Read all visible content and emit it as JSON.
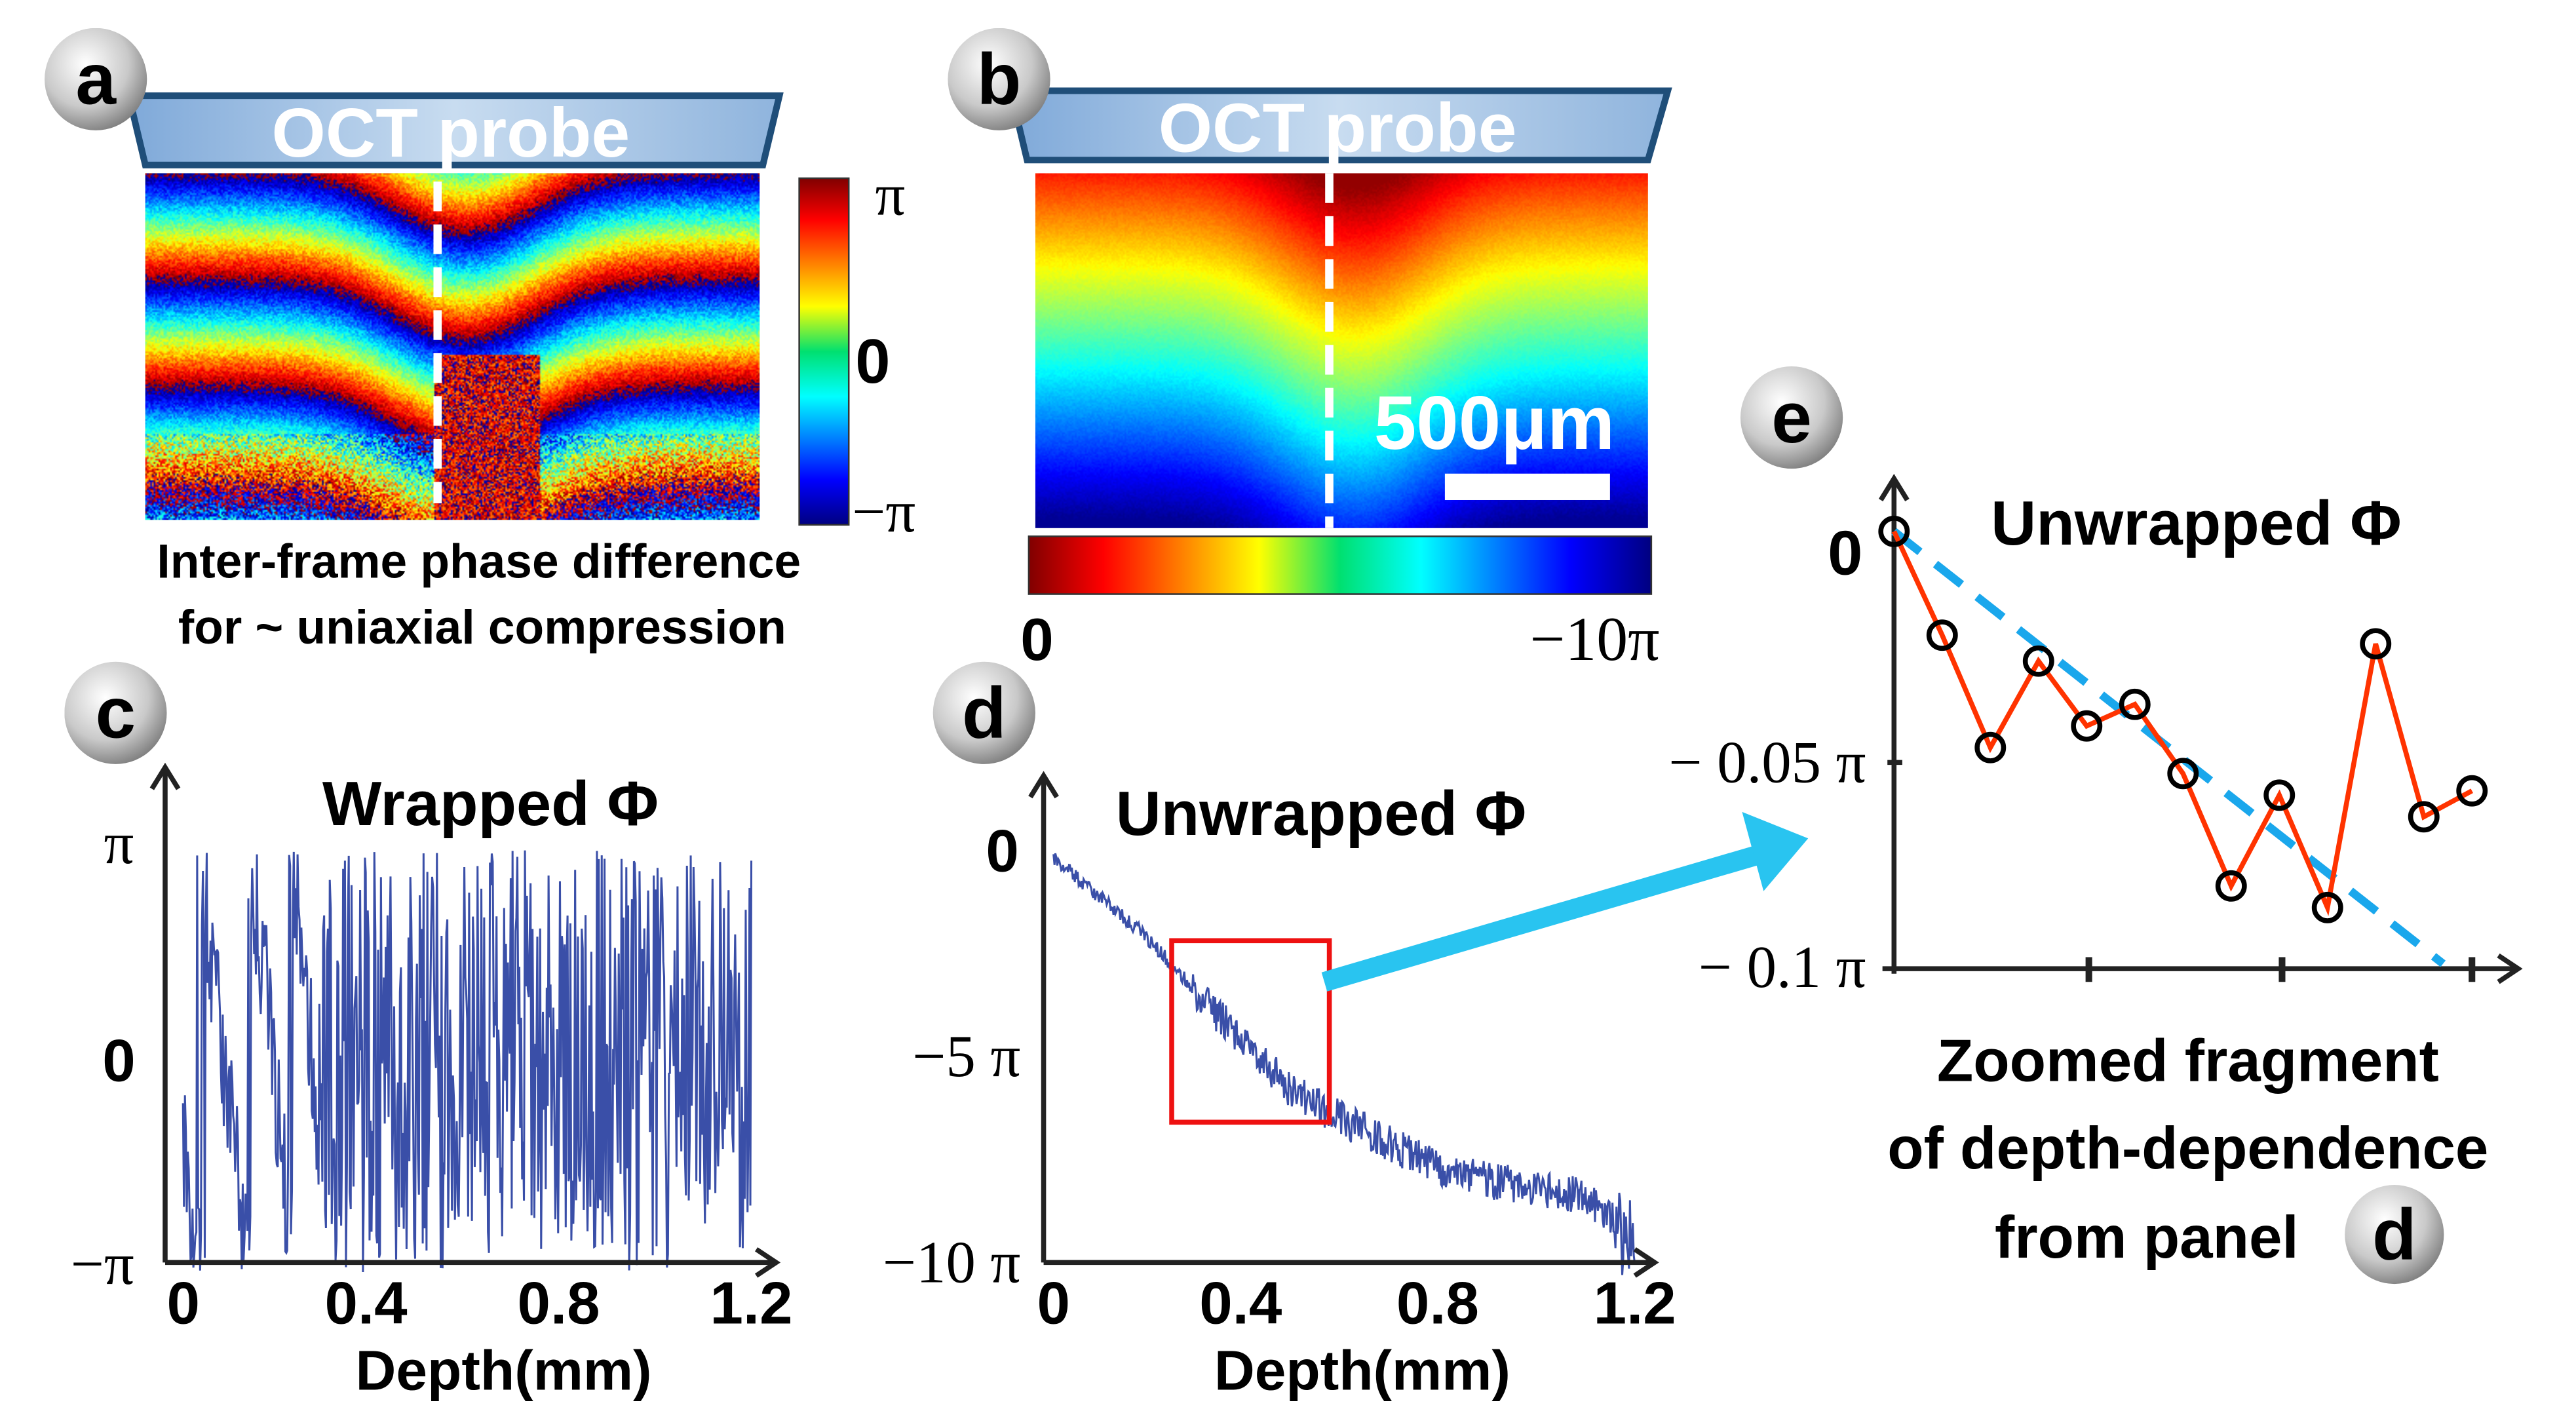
{
  "panels": {
    "a": {
      "letter": "a",
      "probe_label": "OCT probe",
      "colorbar_ticks": [
        "π",
        "0",
        "−π"
      ],
      "caption_lines": [
        "Inter-frame phase difference",
        "for ~ uniaxial compression"
      ]
    },
    "b": {
      "letter": "b",
      "probe_label": "OCT probe",
      "scale_label": "500μm",
      "colorbar_ticks": [
        "0",
        "−10π"
      ]
    },
    "c": {
      "letter": "c"
    },
    "d": {
      "letter": "d"
    },
    "e": {
      "letter": "e",
      "caption_lines": [
        "Zoomed fragment",
        "of depth-dependence",
        "from panel"
      ],
      "caption_ref": "d"
    }
  },
  "colors": {
    "trace": "#3a4fa8",
    "zoom_line": "#ff3300",
    "fit_line": "#1aa7ec",
    "highlight_box": "#ee1111",
    "arrow": "#29c4f0"
  },
  "chart_data": [
    {
      "id": "c",
      "type": "line",
      "title": "Wrapped Φ",
      "xlabel": "Depth(mm)",
      "ylabel": "",
      "xlim": [
        0,
        1.2
      ],
      "ylim_pi": [
        -1,
        1
      ],
      "xticks": [
        "0",
        "0.4",
        "0.8",
        "1.2"
      ],
      "yticks": [
        "π",
        "0",
        "−π"
      ],
      "description_values": "wrapped version of panel d phase (values wrapped into [−π, π])"
    },
    {
      "id": "d",
      "type": "line",
      "title": "Unwrapped Φ",
      "xlabel": "Depth(mm)",
      "xlim": [
        0,
        1.2
      ],
      "ylim_pi": [
        -10,
        0
      ],
      "xticks": [
        "0",
        "0.4",
        "0.8",
        "1.2"
      ],
      "yticks": [
        "0",
        "−5 π",
        "−10 π"
      ],
      "x": [
        0,
        0.1,
        0.2,
        0.3,
        0.4,
        0.5,
        0.6,
        0.7,
        0.8,
        0.9,
        1.0,
        1.1,
        1.2
      ],
      "y_pi": [
        0,
        -1.0,
        -2.0,
        -3.3,
        -4.6,
        -5.8,
        -6.5,
        -7.1,
        -7.7,
        -8.0,
        -8.2,
        -8.4,
        -9.5
      ],
      "highlight_x": [
        0.26,
        0.58
      ]
    },
    {
      "id": "e",
      "type": "line",
      "title": "Unwrapped Φ",
      "ylim_pi": [
        -0.1,
        0
      ],
      "yticks": [
        "0",
        "− 0.05 π",
        "− 0.1 π"
      ],
      "x": [
        0,
        1,
        2,
        3,
        4,
        5,
        6,
        7,
        8,
        9,
        10,
        11,
        12
      ],
      "y_pi": [
        0,
        -0.024,
        -0.05,
        -0.03,
        -0.045,
        -0.04,
        -0.056,
        -0.082,
        -0.061,
        -0.087,
        -0.026,
        -0.066,
        -0.06
      ],
      "fit_line": {
        "from": [
          0,
          0
        ],
        "to": [
          11.4,
          -0.1
        ]
      }
    }
  ]
}
